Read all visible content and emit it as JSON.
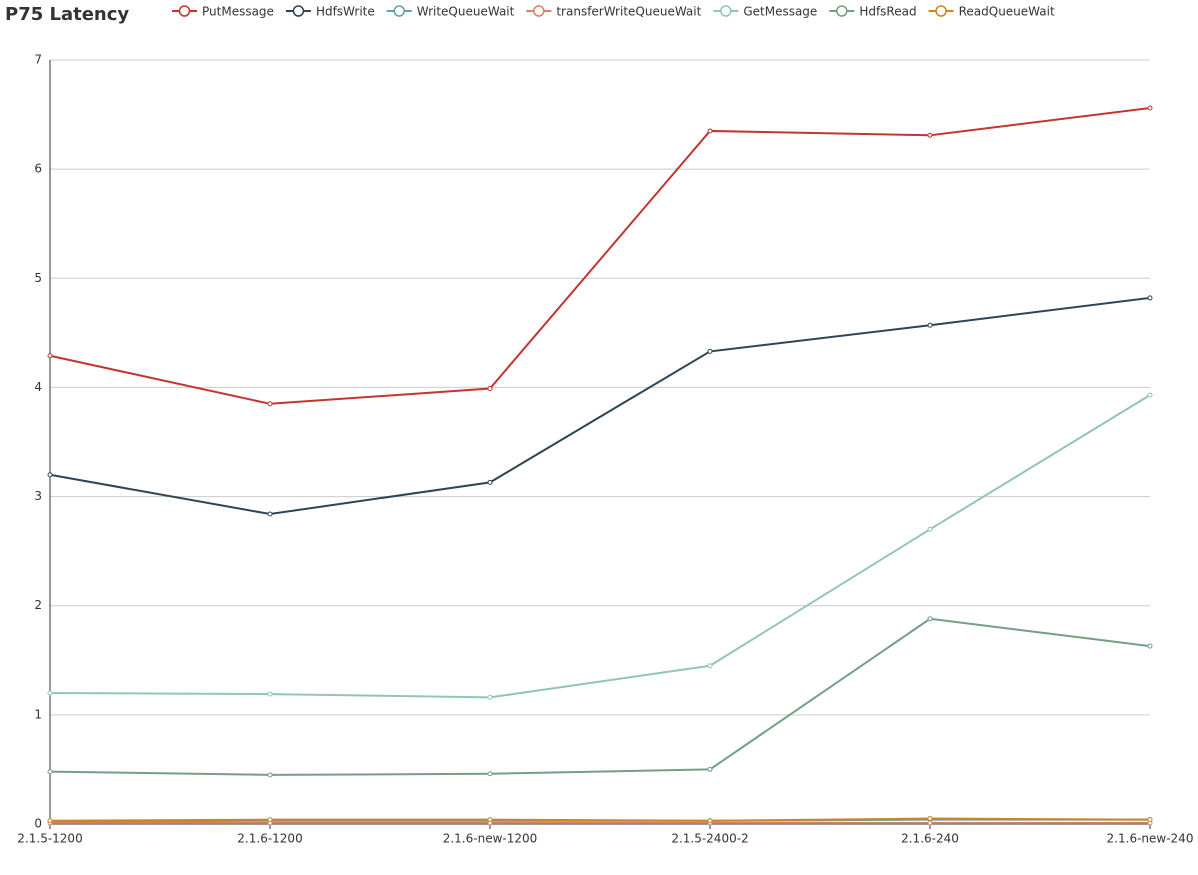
{
  "chart_data": {
    "type": "line",
    "title": "P75 Latency",
    "categories": [
      "2.1.5-1200",
      "2.1.6-1200",
      "2.1.6-new-1200",
      "2.1.5-2400-2",
      "2.1.6-240",
      "2.1.6-new-240"
    ],
    "series": [
      {
        "name": "PutMessage",
        "color": "#c23531",
        "values": [
          4.29,
          3.85,
          3.99,
          6.35,
          6.31,
          6.56
        ]
      },
      {
        "name": "HdfsWrite",
        "color": "#2f4554",
        "values": [
          3.2,
          2.84,
          3.13,
          4.33,
          4.57,
          4.82
        ]
      },
      {
        "name": "WriteQueueWait",
        "color": "#61a0a8",
        "values": [
          0.02,
          0.03,
          0.03,
          0.03,
          0.04,
          0.04
        ]
      },
      {
        "name": "transferWriteQueueWait",
        "color": "#d48265",
        "values": [
          0.01,
          0.01,
          0.01,
          0.01,
          0.01,
          0.01
        ]
      },
      {
        "name": "GetMessage",
        "color": "#91c7ae",
        "values": [
          1.2,
          1.19,
          1.16,
          1.45,
          2.7,
          3.93
        ]
      },
      {
        "name": "HdfsRead",
        "color": "#749f83",
        "values": [
          0.48,
          0.45,
          0.46,
          0.5,
          1.88,
          1.63
        ]
      },
      {
        "name": "ReadQueueWait",
        "color": "#ca8622",
        "values": [
          0.03,
          0.04,
          0.04,
          0.03,
          0.05,
          0.04
        ]
      }
    ],
    "ylim": [
      0,
      7
    ],
    "yticks": [
      0,
      1,
      2,
      3,
      4,
      5,
      6,
      7
    ],
    "grid": true
  }
}
